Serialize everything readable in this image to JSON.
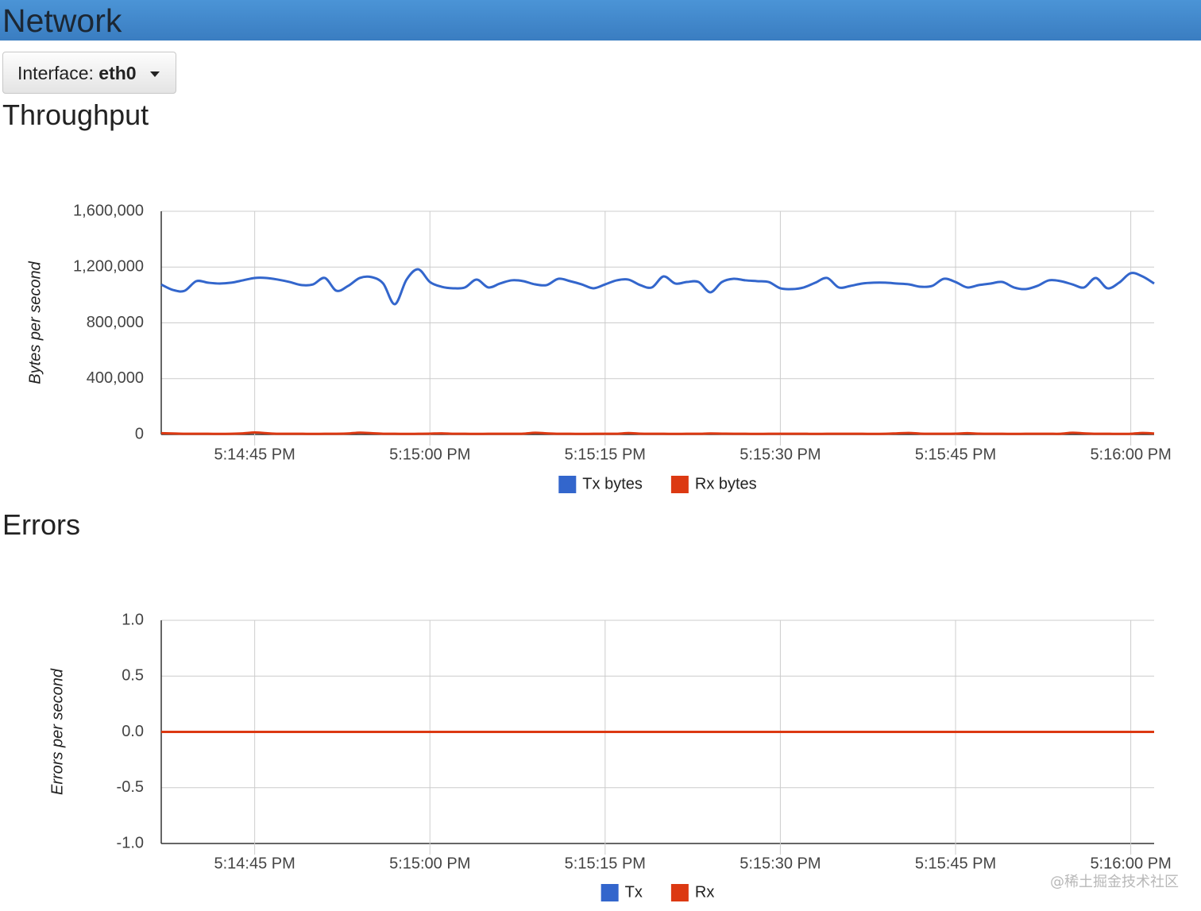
{
  "header": {
    "title": "Network"
  },
  "interface_dropdown": {
    "label": "Interface:",
    "value": "eth0"
  },
  "sections": [
    {
      "heading": "Throughput"
    },
    {
      "heading": "Errors"
    }
  ],
  "watermark": "@稀土掘金技术社区",
  "chart_data": [
    {
      "type": "line",
      "y_label": "Bytes per second",
      "grid": true,
      "legend": "bottom",
      "x": [
        "5:14:37 PM",
        "5:14:38 PM",
        "5:14:39 PM",
        "5:14:40 PM",
        "5:14:41 PM",
        "5:14:42 PM",
        "5:14:43 PM",
        "5:14:44 PM",
        "5:14:45 PM",
        "5:14:46 PM",
        "5:14:47 PM",
        "5:14:48 PM",
        "5:14:49 PM",
        "5:14:50 PM",
        "5:14:51 PM",
        "5:14:52 PM",
        "5:14:53 PM",
        "5:14:54 PM",
        "5:14:55 PM",
        "5:14:56 PM",
        "5:14:57 PM",
        "5:14:58 PM",
        "5:14:59 PM",
        "5:15:00 PM",
        "5:15:01 PM",
        "5:15:02 PM",
        "5:15:03 PM",
        "5:15:04 PM",
        "5:15:05 PM",
        "5:15:06 PM",
        "5:15:07 PM",
        "5:15:08 PM",
        "5:15:09 PM",
        "5:15:10 PM",
        "5:15:11 PM",
        "5:15:12 PM",
        "5:15:13 PM",
        "5:15:14 PM",
        "5:15:15 PM",
        "5:15:16 PM",
        "5:15:17 PM",
        "5:15:18 PM",
        "5:15:19 PM",
        "5:15:20 PM",
        "5:15:21 PM",
        "5:15:22 PM",
        "5:15:23 PM",
        "5:15:24 PM",
        "5:15:25 PM",
        "5:15:26 PM",
        "5:15:27 PM",
        "5:15:28 PM",
        "5:15:29 PM",
        "5:15:30 PM",
        "5:15:31 PM",
        "5:15:32 PM",
        "5:15:33 PM",
        "5:15:34 PM",
        "5:15:35 PM",
        "5:15:36 PM",
        "5:15:37 PM",
        "5:15:38 PM",
        "5:15:39 PM",
        "5:15:40 PM",
        "5:15:41 PM",
        "5:15:42 PM",
        "5:15:43 PM",
        "5:15:44 PM",
        "5:15:45 PM",
        "5:15:46 PM",
        "5:15:47 PM",
        "5:15:48 PM",
        "5:15:49 PM",
        "5:15:50 PM",
        "5:15:51 PM",
        "5:15:52 PM",
        "5:15:53 PM",
        "5:15:54 PM",
        "5:15:55 PM",
        "5:15:56 PM",
        "5:15:57 PM",
        "5:15:58 PM",
        "5:15:59 PM",
        "5:16:00 PM",
        "5:16:01 PM",
        "5:16:02 PM"
      ],
      "xlim": [
        "5:14:37 PM",
        "5:16:02 PM"
      ],
      "xticks": [
        "5:14:45 PM",
        "5:15:00 PM",
        "5:15:15 PM",
        "5:15:30 PM",
        "5:15:45 PM",
        "5:16:00 PM"
      ],
      "ylim": [
        0,
        1600000
      ],
      "yticks": [
        0,
        {
          "value": 400000,
          "label": "400,000"
        },
        {
          "value": 800000,
          "label": "800,000"
        },
        {
          "value": 1200000,
          "label": "1,200,000"
        },
        {
          "value": 1600000,
          "label": "1,600,000"
        }
      ],
      "series": [
        {
          "name": "Tx bytes",
          "color": "#3366cc",
          "values": [
            1075000,
            1036000,
            1030000,
            1099000,
            1088000,
            1082000,
            1088000,
            1105000,
            1122000,
            1122000,
            1110000,
            1093000,
            1071000,
            1076000,
            1122000,
            1030000,
            1065000,
            1122000,
            1128000,
            1082000,
            934000,
            1110000,
            1184000,
            1093000,
            1059000,
            1048000,
            1054000,
            1110000,
            1054000,
            1082000,
            1105000,
            1099000,
            1076000,
            1071000,
            1116000,
            1099000,
            1076000,
            1048000,
            1076000,
            1105000,
            1110000,
            1071000,
            1054000,
            1133000,
            1082000,
            1093000,
            1093000,
            1019000,
            1093000,
            1116000,
            1105000,
            1099000,
            1093000,
            1048000,
            1042000,
            1054000,
            1088000,
            1122000,
            1054000,
            1065000,
            1082000,
            1088000,
            1088000,
            1082000,
            1076000,
            1059000,
            1065000,
            1116000,
            1093000,
            1054000,
            1071000,
            1082000,
            1093000,
            1054000,
            1042000,
            1065000,
            1105000,
            1099000,
            1076000,
            1054000,
            1122000,
            1048000,
            1088000,
            1156000,
            1133000,
            1082000
          ]
        },
        {
          "name": "Rx bytes",
          "color": "#dc3912",
          "values": [
            9000,
            7000,
            5000,
            5000,
            5000,
            4000,
            5000,
            8000,
            14000,
            9000,
            5000,
            5000,
            5000,
            4000,
            5000,
            5000,
            7000,
            13000,
            9000,
            5000,
            5000,
            4000,
            5000,
            6000,
            8000,
            5000,
            5000,
            4000,
            5000,
            5000,
            5000,
            6000,
            12000,
            8000,
            5000,
            5000,
            4000,
            5000,
            5000,
            5000,
            10000,
            6000,
            5000,
            5000,
            4000,
            5000,
            5000,
            7000,
            6000,
            5000,
            5000,
            4000,
            5000,
            5000,
            5000,
            5000,
            4000,
            5000,
            5000,
            5000,
            5000,
            4000,
            5000,
            8000,
            11000,
            6000,
            5000,
            5000,
            6000,
            9000,
            6000,
            5000,
            5000,
            4000,
            5000,
            5000,
            5000,
            5000,
            12000,
            8000,
            5000,
            5000,
            4000,
            5000,
            11000,
            7000
          ]
        }
      ]
    },
    {
      "type": "line",
      "y_label": "Errors per second",
      "grid": true,
      "legend": "bottom",
      "x": [
        "5:14:37 PM",
        "5:14:52 PM",
        "5:15:07 PM",
        "5:15:22 PM",
        "5:15:37 PM",
        "5:15:52 PM",
        "5:16:02 PM"
      ],
      "xlim": [
        "5:14:37 PM",
        "5:16:02 PM"
      ],
      "xticks": [
        "5:14:45 PM",
        "5:15:00 PM",
        "5:15:15 PM",
        "5:15:30 PM",
        "5:15:45 PM",
        "5:16:00 PM"
      ],
      "ylim": [
        -1,
        1
      ],
      "yticks": [
        {
          "value": -1,
          "label": "-1.0"
        },
        {
          "value": -0.5,
          "label": "-0.5"
        },
        {
          "value": 0,
          "label": "0.0"
        },
        {
          "value": 0.5,
          "label": "0.5"
        },
        {
          "value": 1,
          "label": "1.0"
        }
      ],
      "series": [
        {
          "name": "Tx",
          "color": "#3366cc",
          "values": [
            0,
            0,
            0,
            0,
            0,
            0,
            0
          ]
        },
        {
          "name": "Rx",
          "color": "#dc3912",
          "values": [
            0,
            0,
            0,
            0,
            0,
            0,
            0
          ]
        }
      ]
    }
  ]
}
